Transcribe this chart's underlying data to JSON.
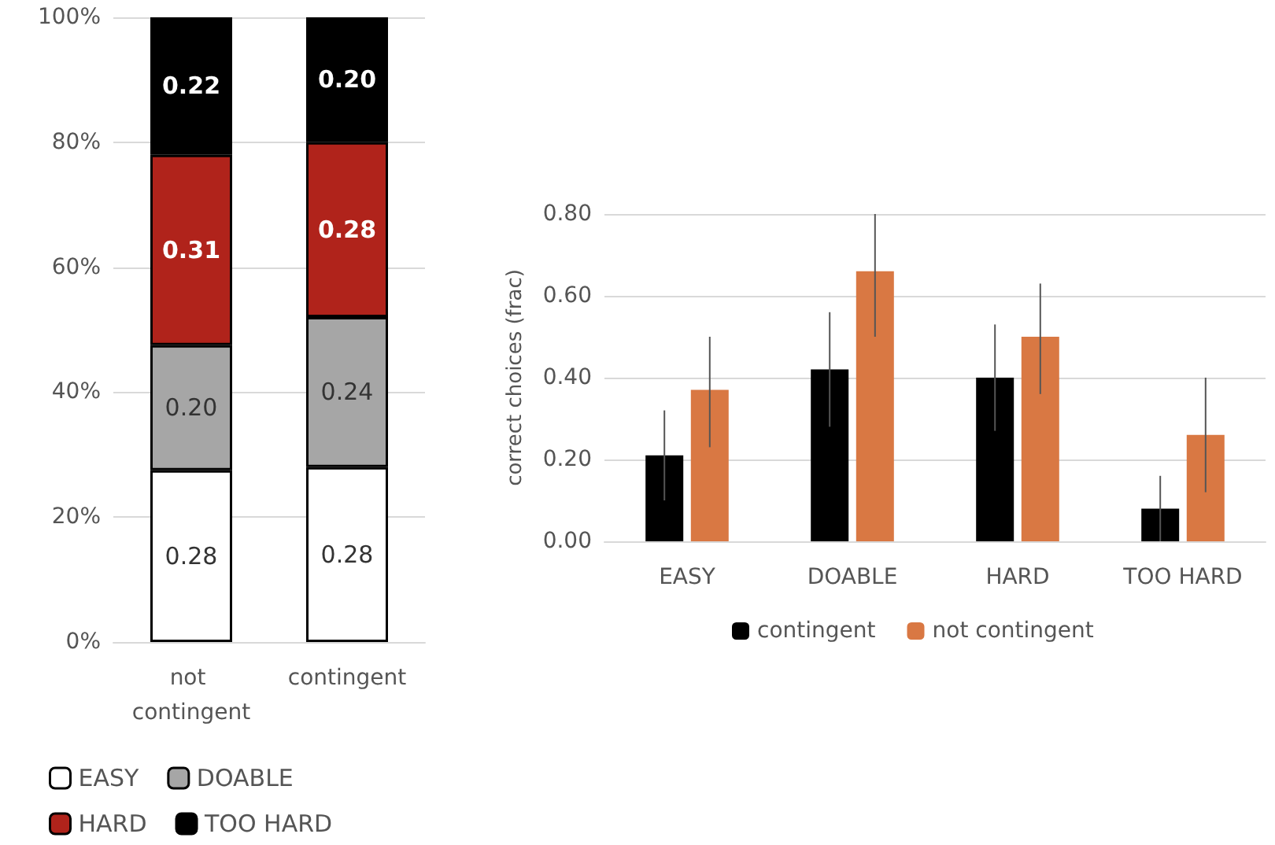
{
  "chart_data": [
    {
      "type": "bar",
      "stacked": true,
      "categories": [
        "not contingent",
        "contingent"
      ],
      "series": [
        {
          "name": "EASY",
          "color": "#ffffff",
          "values": [
            0.275,
            0.28
          ],
          "value_labels": [
            "0.28",
            "0.28"
          ]
        },
        {
          "name": "DOABLE",
          "color": "#a6a6a6",
          "values": [
            0.2,
            0.24
          ],
          "value_labels": [
            "0.20",
            "0.24"
          ]
        },
        {
          "name": "HARD",
          "color": "#b0231b",
          "values": [
            0.305,
            0.28
          ],
          "value_labels": [
            "0.31",
            "0.28"
          ]
        },
        {
          "name": "TOO HARD",
          "color": "#000000",
          "values": [
            0.22,
            0.2
          ],
          "value_labels": [
            "0.22",
            "0.20"
          ]
        }
      ],
      "ylim": [
        0,
        1
      ],
      "yticks": [
        {
          "value": 0,
          "label": "0%"
        },
        {
          "value": 0.2,
          "label": "20%"
        },
        {
          "value": 0.4,
          "label": "40%"
        },
        {
          "value": 0.6,
          "label": "60%"
        },
        {
          "value": 0.8,
          "label": "80%"
        },
        {
          "value": 1,
          "label": "100%"
        }
      ],
      "grid": "y",
      "legend": "bottom"
    },
    {
      "type": "bar",
      "categories": [
        "EASY",
        "DOABLE",
        "HARD",
        "TOO HARD"
      ],
      "ylabel": "correct choices (frac)",
      "series": [
        {
          "name": "contingent",
          "color": "#000000",
          "values": [
            0.21,
            0.42,
            0.4,
            0.08
          ],
          "errors": [
            [
              0.1,
              0.32
            ],
            [
              0.28,
              0.56
            ],
            [
              0.27,
              0.53
            ],
            [
              0.0,
              0.16
            ]
          ]
        },
        {
          "name": "not contingent",
          "color": "#d97843",
          "values": [
            0.37,
            0.66,
            0.5,
            0.26
          ],
          "errors": [
            [
              0.23,
              0.5
            ],
            [
              0.5,
              0.8
            ],
            [
              0.36,
              0.63
            ],
            [
              0.12,
              0.4
            ]
          ]
        }
      ],
      "ylim": [
        0,
        0.8
      ],
      "yticks": [
        {
          "value": 0,
          "label": "0.00"
        },
        {
          "value": 0.2,
          "label": "0.20"
        },
        {
          "value": 0.4,
          "label": "0.40"
        },
        {
          "value": 0.6,
          "label": "0.60"
        },
        {
          "value": 0.8,
          "label": "0.80"
        }
      ],
      "grid": "y",
      "legend": "bottom"
    }
  ]
}
